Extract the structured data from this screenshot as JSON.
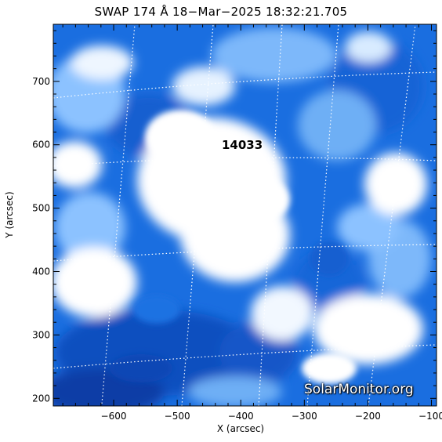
{
  "title": "SWAP 174 Å 18−Mar−2025 18:32:21.705",
  "axes": {
    "xlabel": "X (arcsec)",
    "ylabel": "Y (arcsec)",
    "xlim": [
      -695,
      -92
    ],
    "ylim": [
      188,
      790
    ],
    "xticks": [
      -600,
      -500,
      -400,
      -300,
      -200,
      -100
    ],
    "yticks": [
      200,
      300,
      400,
      500,
      600,
      700
    ],
    "xtick_labels": [
      "−600",
      "−500",
      "−400",
      "−300",
      "−200",
      "−100"
    ],
    "ytick_labels": [
      "200",
      "300",
      "400",
      "500",
      "600",
      "700"
    ]
  },
  "annotations": {
    "active_region": "14033"
  },
  "watermark": "SolarMonitor.org",
  "colors": {
    "deep_blue": "#0a3ca6",
    "mid_blue": "#1a6ee0",
    "light_blue": "#8cc2ff",
    "white": "#ffffff"
  }
}
